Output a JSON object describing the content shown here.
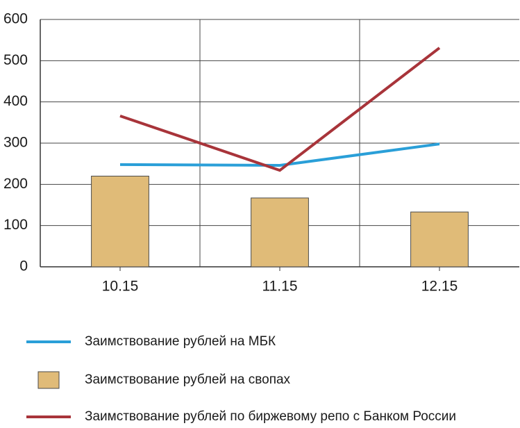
{
  "chart_data": {
    "type": "combo",
    "categories": [
      "10.15",
      "11.15",
      "12.15"
    ],
    "ylim": [
      0,
      600
    ],
    "yticks": [
      0,
      100,
      200,
      300,
      400,
      500,
      600
    ],
    "grid": true,
    "series": [
      {
        "name": "Заимствование рублей на МБК",
        "type": "line",
        "color": "#2a9fd8",
        "values": [
          248,
          246,
          298
        ]
      },
      {
        "name": "Заимствование рублей на свопах",
        "type": "bar",
        "color": "#e0bb78",
        "values": [
          220,
          167,
          133
        ]
      },
      {
        "name": "Заимствование рублей по биржевому репо с Банком России",
        "type": "line",
        "color": "#a8343a",
        "values": [
          366,
          234,
          531
        ]
      }
    ]
  }
}
